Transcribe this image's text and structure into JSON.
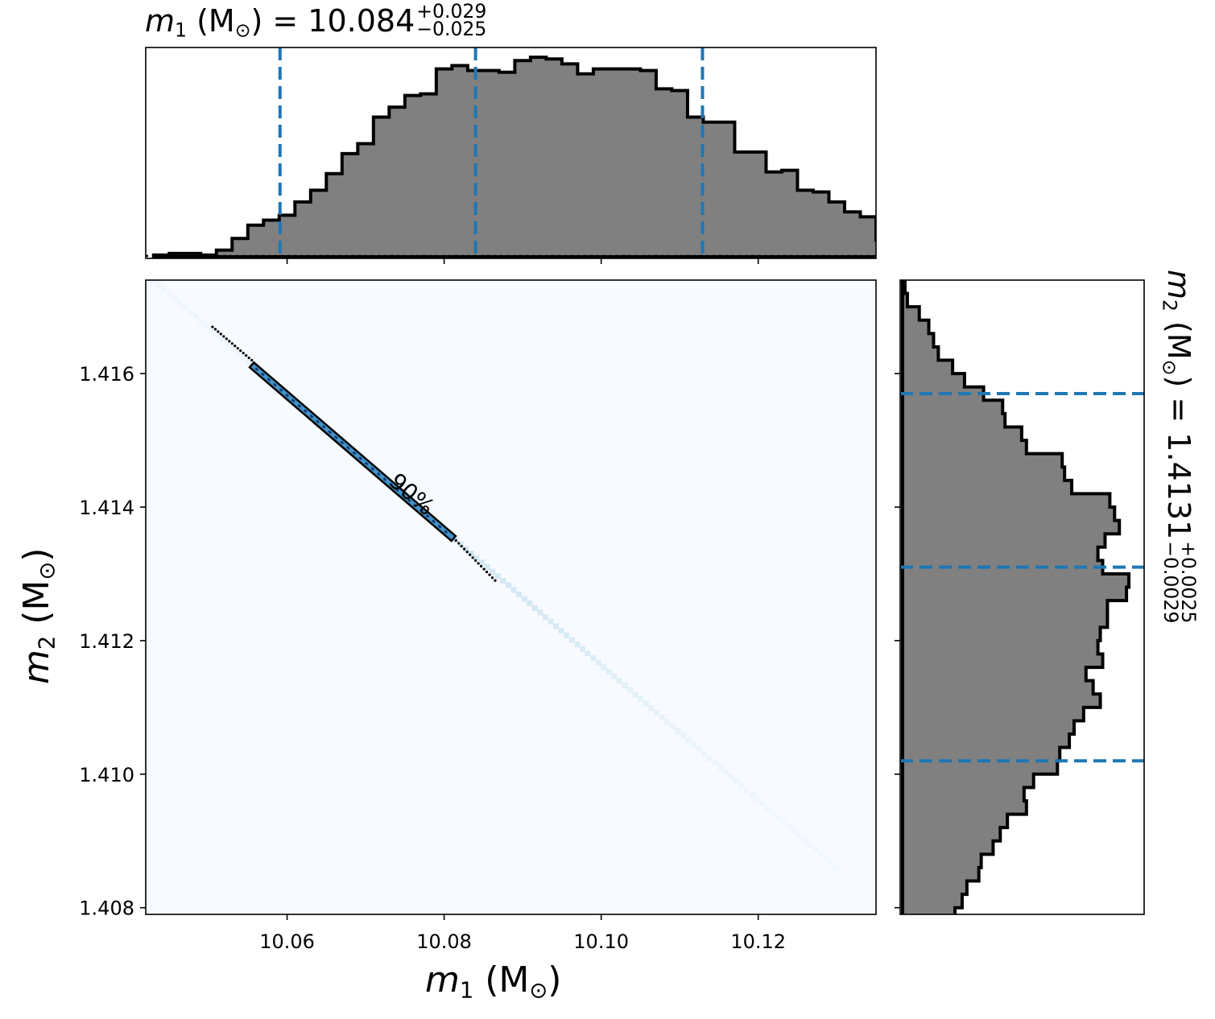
{
  "chart_data": {
    "type": "corner",
    "colors": {
      "hist_fill": "#808080",
      "hist_edge": "#000000",
      "quantile_line": "#1f77b4",
      "density_low": "#f7fbff",
      "density_high": "#08306b",
      "contour": "#000000"
    },
    "m1_label": {
      "sym": "m",
      "sub": "1",
      "unit": " (M",
      "unit_sub": "⊙",
      "close": ")"
    },
    "m2_label": {
      "sym": "m",
      "sub": "2",
      "unit": " (M",
      "unit_sub": "⊙",
      "close": ")"
    },
    "m1_summary": {
      "eq": " = 10.084",
      "plus": "+0.029",
      "minus": "−0.025"
    },
    "m2_summary": {
      "eq": " = 1.4131",
      "plus": "+0.0025",
      "minus": "−0.0029"
    },
    "m1_quantiles": [
      10.0591,
      10.084,
      10.1129
    ],
    "m2_quantiles": [
      1.4102,
      1.4131,
      1.4157
    ],
    "xlim": [
      10.042,
      10.135
    ],
    "ylim": [
      1.4079,
      1.4174
    ],
    "xticks": [
      "10.06",
      "10.08",
      "10.10",
      "10.12"
    ],
    "xtick_values": [
      10.06,
      10.08,
      10.1,
      10.12
    ],
    "yticks": [
      "1.408",
      "1.410",
      "1.412",
      "1.414",
      "1.416"
    ],
    "ytick_values": [
      1.408,
      1.41,
      1.412,
      1.414,
      1.416
    ],
    "contour_label": "90%",
    "m1_hist": {
      "edges_start": 10.043,
      "bin_width": 0.002,
      "values": [
        0.01,
        0.02,
        0.02,
        0.01,
        0.04,
        0.11,
        0.19,
        0.22,
        0.25,
        0.33,
        0.4,
        0.5,
        0.62,
        0.68,
        0.84,
        0.9,
        0.97,
        0.98,
        1.13,
        1.15,
        1.12,
        1.12,
        1.11,
        1.18,
        1.2,
        1.19,
        1.16,
        1.1,
        1.13,
        1.13,
        1.13,
        1.12,
        1.01,
        1.0,
        0.84,
        0.81,
        0.81,
        0.63,
        0.63,
        0.51,
        0.52,
        0.4,
        0.39,
        0.33,
        0.27,
        0.24,
        0.1,
        0.08,
        0.05,
        0.04,
        0.01
      ]
    },
    "m2_hist": {
      "edges_start": 1.4174,
      "bin_width": -0.0002,
      "values": [
        0.01,
        0.02,
        0.07,
        0.11,
        0.13,
        0.15,
        0.21,
        0.26,
        0.34,
        0.42,
        0.43,
        0.5,
        0.52,
        0.67,
        0.68,
        0.71,
        0.87,
        0.89,
        0.91,
        0.85,
        0.82,
        0.84,
        0.95,
        0.94,
        0.86,
        0.86,
        0.83,
        0.82,
        0.84,
        0.77,
        0.8,
        0.83,
        0.76,
        0.72,
        0.7,
        0.66,
        0.65,
        0.55,
        0.51,
        0.52,
        0.44,
        0.41,
        0.38,
        0.33,
        0.32,
        0.27,
        0.25,
        0.22,
        0.19,
        0.16,
        0.14,
        0.08,
        0.06,
        0.04,
        0.03,
        0.02,
        0.01
      ]
    }
  }
}
